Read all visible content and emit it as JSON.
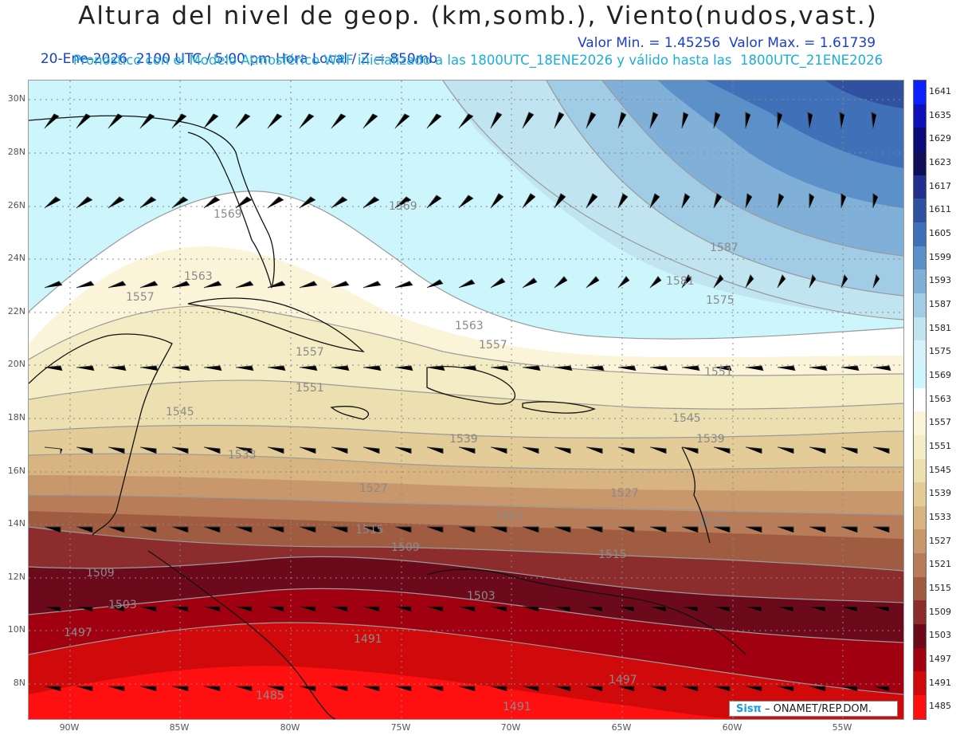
{
  "header": {
    "title": "Altura del nivel de geop. (km,somb.), Viento(nudos,vast.)",
    "line1_left": "20-Ene-2026  2100 UTC / 5:00 pm Hora Local / Z = 850mb",
    "line1_right": "Valor Min. = 1.45256  Valor Max. = 1.61739",
    "line2": "Pronóstico con el Modelo Atmosférico WRF inicializado a las 1800UTC_18ENE2026 y válido hasta las  1800UTC_21ENE2026"
  },
  "lat_labels": [
    "30N",
    "28N",
    "26N",
    "24N",
    "22N",
    "20N",
    "18N",
    "16N",
    "14N",
    "12N",
    "10N",
    "8N"
  ],
  "lon_labels": [
    "90W",
    "85W",
    "80W",
    "75W",
    "70W",
    "65W",
    "60W",
    "55W"
  ],
  "colorbar": {
    "levels": [
      "1641",
      "1635",
      "1629",
      "1623",
      "1617",
      "1611",
      "1605",
      "1599",
      "1593",
      "1587",
      "1581",
      "1575",
      "1569",
      "1563",
      "1557",
      "1551",
      "1545",
      "1539",
      "1533",
      "1527",
      "1521",
      "1515",
      "1509",
      "1503",
      "1497",
      "1491",
      "1485"
    ],
    "colors": [
      "#0a20ff",
      "#1010b8",
      "#0c0c78",
      "#101058",
      "#20308c",
      "#3050a0",
      "#4070b8",
      "#5c90c8",
      "#80b0d8",
      "#a0cce6",
      "#c0e4f0",
      "#d4f2f8",
      "#ccf6fc",
      "#ffffff",
      "#fcf4d8",
      "#f4ecc4",
      "#ece0b0",
      "#e4cc98",
      "#d8b480",
      "#c8986c",
      "#b87c58",
      "#a05c40",
      "#8c2c2c",
      "#6c0a1c",
      "#a00010",
      "#d00a0a",
      "#ff1010"
    ]
  },
  "contour_labels": [
    "1569",
    "1569",
    "1563",
    "1557",
    "1557",
    "1551",
    "1545",
    "1539",
    "1533",
    "1527",
    "1521",
    "1515",
    "1509",
    "1503",
    "1497",
    "1491",
    "1485",
    "1587",
    "1581",
    "1575",
    "1563",
    "1557",
    "1551",
    "1545",
    "1539",
    "1527",
    "1521",
    "1515",
    "1509",
    "1503",
    "1497",
    "1491"
  ],
  "credit": {
    "brand": "Sisπ",
    "text": "– ONAMET/REP.DOM."
  }
}
